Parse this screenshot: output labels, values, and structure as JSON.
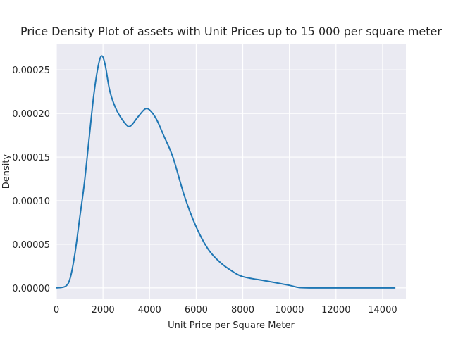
{
  "chart_data": {
    "type": "line",
    "title": "Price Density Plot of assets with Unit Prices up to 15 000 per square meter",
    "xlabel": "Unit Price per Square Meter",
    "ylabel": "Density",
    "xlim": [
      0,
      15000
    ],
    "ylim": [
      -1.3e-05,
      0.00028
    ],
    "grid": true,
    "background": "#eaeaf2",
    "grid_color": "#ffffff",
    "line_color": "#1f77b4",
    "x_ticks": [
      0,
      2000,
      4000,
      6000,
      8000,
      10000,
      12000,
      14000
    ],
    "x_tick_labels": [
      "0",
      "2000",
      "4000",
      "6000",
      "8000",
      "10000",
      "12000",
      "14000"
    ],
    "y_ticks": [
      0,
      5e-05,
      0.0001,
      0.00015,
      0.0002,
      0.00025
    ],
    "y_tick_labels": [
      "0.00000",
      "0.00005",
      "0.00010",
      "0.00015",
      "0.00020",
      "0.00025"
    ],
    "series": [
      {
        "x": [
          0,
          400,
          600,
          800,
          1000,
          1200,
          1400,
          1600,
          1800,
          1950,
          2100,
          2300,
          2600,
          3000,
          3200,
          3500,
          3800,
          4000,
          4300,
          4600,
          5000,
          5500,
          6000,
          6500,
          7000,
          7500,
          8000,
          9000,
          10000,
          10400,
          11000,
          12000,
          13000,
          14000,
          14550
        ],
        "y": [
          0.0,
          2e-06,
          1.2e-05,
          4e-05,
          8e-05,
          0.00012,
          0.00017,
          0.00022,
          0.000255,
          0.000266,
          0.000255,
          0.000225,
          0.000203,
          0.000187,
          0.000186,
          0.000196,
          0.000205,
          0.000204,
          0.000193,
          0.000175,
          0.00015,
          0.000105,
          7e-05,
          4.5e-05,
          3e-05,
          2e-05,
          1.3e-05,
          8e-06,
          3e-06,
          5e-07,
          0.0,
          0.0,
          0.0,
          0.0,
          0.0
        ]
      }
    ]
  }
}
